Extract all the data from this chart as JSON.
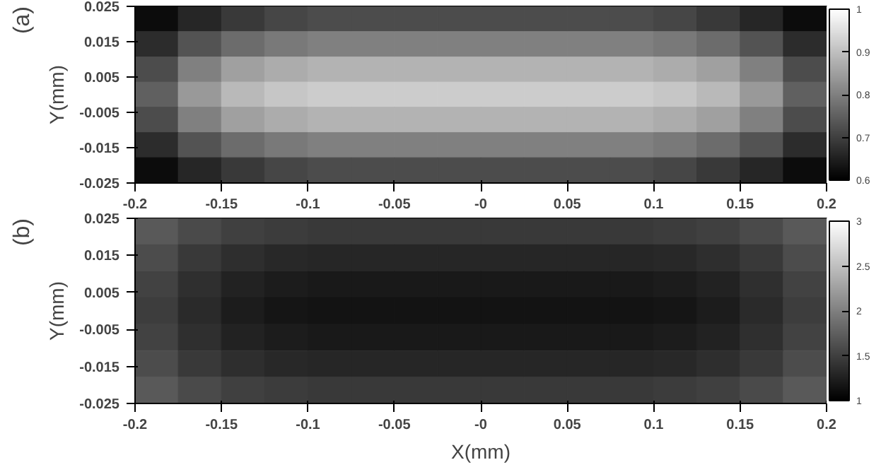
{
  "chart_data": [
    {
      "type": "heatmap",
      "title": "(a)",
      "ylabel": "Y(mm)",
      "x": [
        -0.1875,
        -0.1625,
        -0.1375,
        -0.1125,
        -0.0875,
        -0.0625,
        -0.0375,
        -0.0125,
        0.0125,
        0.0375,
        0.0625,
        0.0875,
        0.1125,
        0.1375,
        0.1625,
        0.1875
      ],
      "y": [
        0.0214,
        0.0143,
        0.0071,
        0,
        -0.0071,
        -0.0143,
        -0.0214
      ],
      "xlim": [
        -0.2,
        0.2
      ],
      "xticks": [
        -0.2,
        -0.15,
        -0.1,
        -0.05,
        {
          "value": 0,
          "label": "-0"
        },
        0.05,
        0.1,
        0.15,
        0.2
      ],
      "ylim": [
        -0.025,
        0.025
      ],
      "yticks": [
        -0.025,
        -0.015,
        -0.005,
        0.005,
        0.015,
        0.025
      ],
      "clim": [
        0.6,
        1
      ],
      "cticks": [
        0.6,
        0.7,
        0.8,
        0.9,
        1
      ],
      "cells": [
        [
          0.62,
          0.66,
          0.69,
          0.71,
          0.72,
          0.72,
          0.72,
          0.72,
          0.72,
          0.72,
          0.72,
          0.72,
          0.71,
          0.69,
          0.66,
          0.62
        ],
        [
          0.67,
          0.73,
          0.77,
          0.79,
          0.8,
          0.8,
          0.8,
          0.8,
          0.8,
          0.8,
          0.8,
          0.8,
          0.79,
          0.77,
          0.73,
          0.67
        ],
        [
          0.72,
          0.8,
          0.85,
          0.87,
          0.88,
          0.88,
          0.88,
          0.88,
          0.88,
          0.88,
          0.88,
          0.88,
          0.87,
          0.85,
          0.8,
          0.72
        ],
        [
          0.75,
          0.84,
          0.89,
          0.91,
          0.92,
          0.92,
          0.92,
          0.92,
          0.92,
          0.92,
          0.92,
          0.92,
          0.91,
          0.89,
          0.84,
          0.75
        ],
        [
          0.72,
          0.8,
          0.85,
          0.87,
          0.88,
          0.88,
          0.88,
          0.88,
          0.88,
          0.88,
          0.88,
          0.88,
          0.87,
          0.85,
          0.8,
          0.72
        ],
        [
          0.67,
          0.73,
          0.77,
          0.79,
          0.8,
          0.8,
          0.8,
          0.8,
          0.8,
          0.8,
          0.8,
          0.8,
          0.79,
          0.77,
          0.73,
          0.67
        ],
        [
          0.62,
          0.66,
          0.69,
          0.71,
          0.72,
          0.72,
          0.72,
          0.72,
          0.72,
          0.72,
          0.72,
          0.72,
          0.71,
          0.69,
          0.66,
          0.62
        ]
      ]
    },
    {
      "type": "heatmap",
      "title": "(b)",
      "xlabel": "X(mm)",
      "ylabel": "Y(mm)",
      "x": [
        -0.1875,
        -0.1625,
        -0.1375,
        -0.1125,
        -0.0875,
        -0.0625,
        -0.0375,
        -0.0125,
        0.0125,
        0.0375,
        0.0625,
        0.0875,
        0.1125,
        0.1375,
        0.1625,
        0.1875
      ],
      "y": [
        0.0214,
        0.0143,
        0.0071,
        0,
        -0.0071,
        -0.0143,
        -0.0214
      ],
      "xlim": [
        -0.2,
        0.2
      ],
      "xticks": [
        -0.2,
        -0.15,
        -0.1,
        -0.05,
        {
          "value": 0,
          "label": "-0"
        },
        0.05,
        0.1,
        0.15,
        0.2
      ],
      "ylim": [
        -0.025,
        0.025
      ],
      "yticks": [
        -0.025,
        -0.015,
        -0.005,
        0.005,
        0.015,
        0.025
      ],
      "clim": [
        1,
        3
      ],
      "cticks": [
        1,
        1.5,
        2,
        2.5,
        3
      ],
      "cells": [
        [
          1.7,
          1.58,
          1.5,
          1.47,
          1.45,
          1.45,
          1.45,
          1.45,
          1.45,
          1.45,
          1.45,
          1.45,
          1.47,
          1.5,
          1.58,
          1.7
        ],
        [
          1.6,
          1.45,
          1.36,
          1.32,
          1.3,
          1.3,
          1.3,
          1.3,
          1.3,
          1.3,
          1.3,
          1.3,
          1.32,
          1.36,
          1.45,
          1.6
        ],
        [
          1.52,
          1.37,
          1.27,
          1.22,
          1.2,
          1.2,
          1.2,
          1.2,
          1.2,
          1.2,
          1.2,
          1.2,
          1.22,
          1.27,
          1.37,
          1.52
        ],
        [
          1.48,
          1.33,
          1.22,
          1.17,
          1.15,
          1.15,
          1.15,
          1.15,
          1.15,
          1.15,
          1.15,
          1.15,
          1.17,
          1.22,
          1.33,
          1.48
        ],
        [
          1.52,
          1.37,
          1.27,
          1.22,
          1.2,
          1.2,
          1.2,
          1.2,
          1.2,
          1.2,
          1.2,
          1.2,
          1.22,
          1.27,
          1.37,
          1.52
        ],
        [
          1.6,
          1.45,
          1.36,
          1.32,
          1.3,
          1.3,
          1.3,
          1.3,
          1.3,
          1.3,
          1.3,
          1.3,
          1.32,
          1.36,
          1.45,
          1.6
        ],
        [
          1.7,
          1.58,
          1.5,
          1.47,
          1.45,
          1.45,
          1.45,
          1.45,
          1.45,
          1.45,
          1.45,
          1.45,
          1.47,
          1.5,
          1.58,
          1.7
        ]
      ]
    }
  ]
}
